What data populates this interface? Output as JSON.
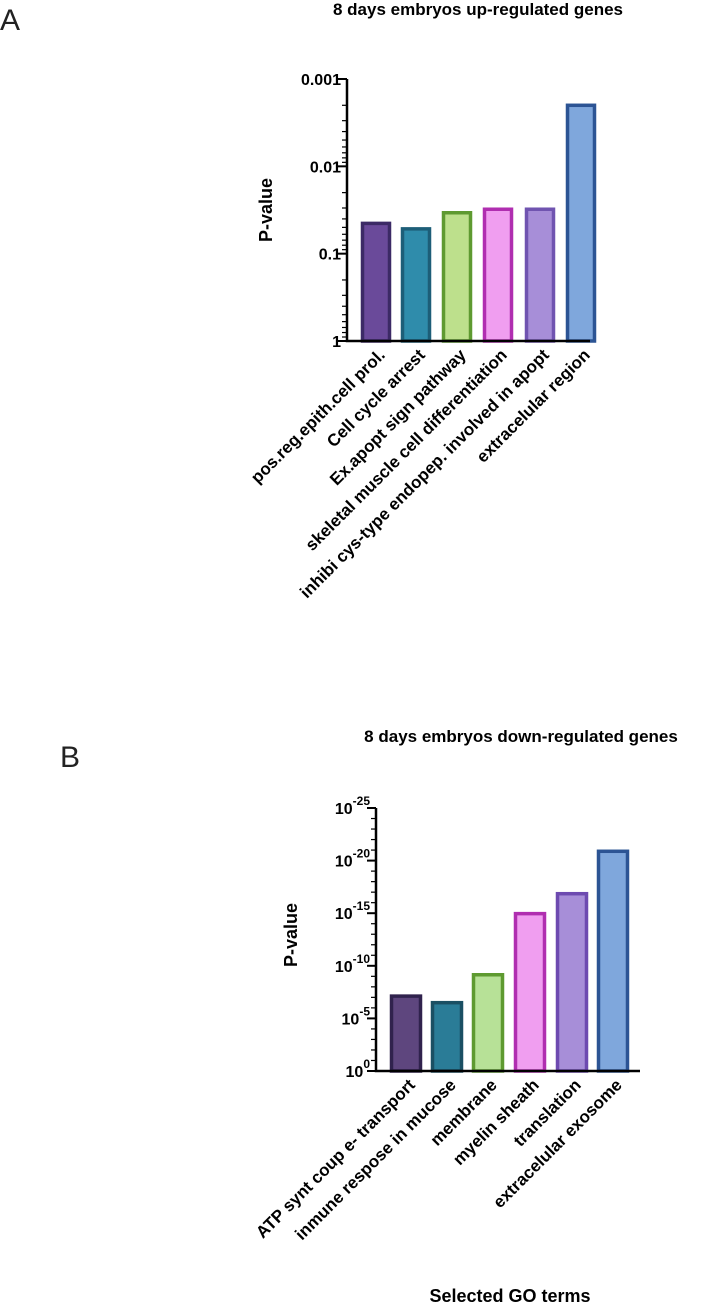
{
  "chart_data": [
    {
      "panel": "A",
      "type": "bar",
      "title": "8 days embryos up-regulated  genes",
      "xlabel": "",
      "ylabel": "P-value",
      "yscale": "log-reversed",
      "ylim": [
        1,
        0.001
      ],
      "yticks": [
        {
          "value": 1,
          "label": "1"
        },
        {
          "value": 0.1,
          "label": "0.1"
        },
        {
          "value": 0.01,
          "label": "0.01"
        },
        {
          "value": 0.001,
          "label": "0.001"
        }
      ],
      "categories": [
        "pos.reg.epith.cell prol.",
        "Cell cycle arrest",
        "Ex.apopt sign pathway",
        "skeletal muscle cell differentiation",
        "inhibi cys-type endopep. involved in apopt",
        "extracelular region"
      ],
      "values": [
        0.045,
        0.052,
        0.034,
        0.031,
        0.031,
        0.002
      ],
      "fill_colors": [
        "#6a4a9a",
        "#2f8cab",
        "#bde08c",
        "#f09ef0",
        "#a78ed8",
        "#7fa7dc"
      ],
      "stroke_colors": [
        "#3c2a66",
        "#1d5e78",
        "#5e9a30",
        "#b02eb0",
        "#7054b0",
        "#2c5494"
      ]
    },
    {
      "panel": "B",
      "type": "bar",
      "title": "8 days embryos down-regulated  genes",
      "xlabel": "Selected GO terms",
      "ylabel": "P-value",
      "yscale": "log-reversed",
      "ylim": [
        1,
        1e-25
      ],
      "yticks": [
        {
          "value": 1,
          "base": "10",
          "exp": "0"
        },
        {
          "value": 1e-05,
          "base": "10",
          "exp": "-5"
        },
        {
          "value": 1e-10,
          "base": "10",
          "exp": "-10"
        },
        {
          "value": 1e-15,
          "base": "10",
          "exp": "-15"
        },
        {
          "value": 1e-20,
          "base": "10",
          "exp": "-20"
        },
        {
          "value": 1e-25,
          "base": "10",
          "exp": "-25"
        }
      ],
      "categories": [
        "ATP synt coup e- transport",
        "inmune respose in mucose",
        "membrane",
        "myelin sheath",
        "translation",
        "extracelular exosome"
      ],
      "values": [
        7.6e-08,
        3.2e-07,
        7.1e-10,
        1.1e-15,
        1.4e-17,
        1.3e-21
      ],
      "fill_colors": [
        "#5e467e",
        "#2a7c97",
        "#b7e197",
        "#f09ef0",
        "#a78ed8",
        "#7fa7dc"
      ],
      "stroke_colors": [
        "#30224d",
        "#1a4f63",
        "#5e9a30",
        "#b02eb0",
        "#6d4ab0",
        "#2c5494"
      ]
    }
  ]
}
